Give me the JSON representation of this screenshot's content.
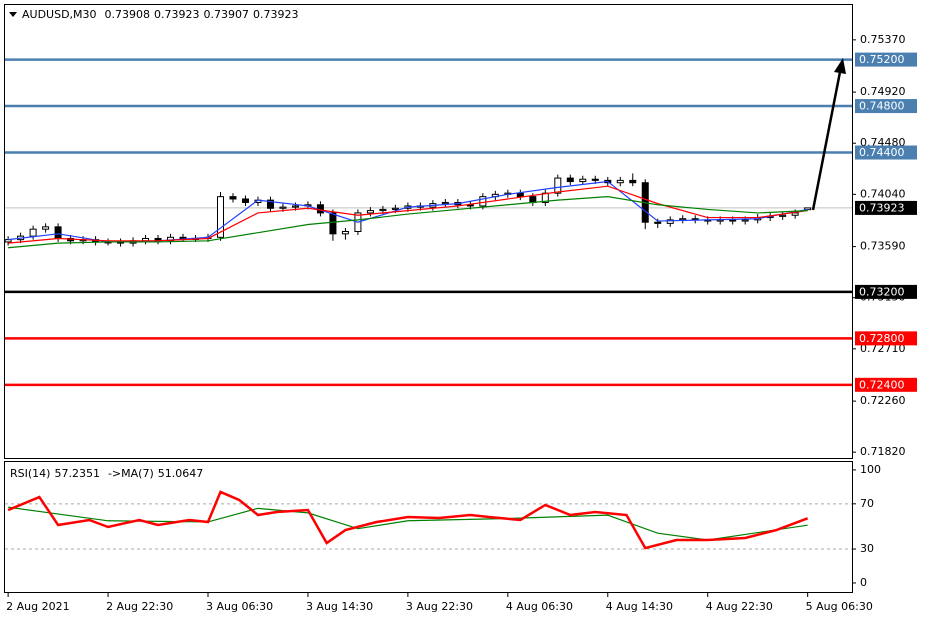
{
  "chart_data": [
    {
      "type": "candlestick",
      "title": "AUDUSD,M30",
      "x": [
        0,
        2,
        4,
        6,
        8,
        10,
        12,
        14,
        16,
        18,
        20,
        22,
        24,
        26,
        28,
        30,
        32,
        34,
        36,
        38,
        40,
        42,
        44,
        46,
        48,
        50,
        52,
        54,
        56,
        58,
        60,
        62,
        64,
        66,
        68,
        70,
        72,
        74,
        76,
        78,
        80,
        82,
        84,
        86,
        88,
        90,
        92,
        94,
        96,
        98,
        100,
        102,
        104,
        106,
        108,
        110,
        112,
        114,
        116,
        118,
        120,
        122,
        124,
        126,
        128
      ],
      "open": [
        0.7363,
        0.7365,
        0.7368,
        0.7374,
        0.7376,
        0.7366,
        0.7364,
        0.7365,
        0.7363,
        0.7363,
        0.7362,
        0.7364,
        0.7366,
        0.7364,
        0.7367,
        0.7366,
        0.7366,
        0.7367,
        0.7402,
        0.74,
        0.7397,
        0.7399,
        0.7392,
        0.7393,
        0.7394,
        0.7395,
        0.7388,
        0.737,
        0.7372,
        0.7388,
        0.739,
        0.7391,
        0.7392,
        0.7394,
        0.7393,
        0.7396,
        0.7397,
        0.7395,
        0.7394,
        0.7402,
        0.7404,
        0.7405,
        0.7402,
        0.7397,
        0.7405,
        0.7418,
        0.7415,
        0.7417,
        0.7416,
        0.7414,
        0.7416,
        0.7414,
        0.738,
        0.7379,
        0.7382,
        0.7383,
        0.7382,
        0.7381,
        0.7382,
        0.7381,
        0.7382,
        0.7384,
        0.7385,
        0.7386,
        0.73908
      ],
      "high": [
        0.7368,
        0.7371,
        0.7377,
        0.7379,
        0.7379,
        0.7369,
        0.7368,
        0.7368,
        0.7366,
        0.7366,
        0.7367,
        0.7369,
        0.7369,
        0.737,
        0.737,
        0.7369,
        0.737,
        0.7406,
        0.7405,
        0.7403,
        0.7402,
        0.7402,
        0.7396,
        0.7397,
        0.7398,
        0.7398,
        0.7391,
        0.7375,
        0.7391,
        0.7393,
        0.7394,
        0.7395,
        0.7397,
        0.7397,
        0.7399,
        0.74,
        0.74,
        0.7398,
        0.7405,
        0.7407,
        0.7408,
        0.7408,
        0.7405,
        0.7408,
        0.7421,
        0.7421,
        0.742,
        0.742,
        0.7419,
        0.7419,
        0.7422,
        0.7417,
        0.7383,
        0.7385,
        0.7386,
        0.7386,
        0.7385,
        0.7385,
        0.7385,
        0.7385,
        0.7387,
        0.7388,
        0.7389,
        0.7391,
        0.73923
      ],
      "low": [
        0.736,
        0.7362,
        0.7365,
        0.7371,
        0.7363,
        0.7361,
        0.7361,
        0.736,
        0.736,
        0.7359,
        0.7359,
        0.7361,
        0.7361,
        0.7361,
        0.7363,
        0.7363,
        0.7363,
        0.7364,
        0.7397,
        0.7394,
        0.7394,
        0.7389,
        0.7389,
        0.739,
        0.7391,
        0.7385,
        0.7364,
        0.7365,
        0.7369,
        0.7385,
        0.7387,
        0.7388,
        0.7389,
        0.739,
        0.739,
        0.7393,
        0.7392,
        0.7391,
        0.7391,
        0.7399,
        0.7401,
        0.7399,
        0.7394,
        0.7394,
        0.7402,
        0.7412,
        0.7412,
        0.7413,
        0.7411,
        0.7411,
        0.7411,
        0.7374,
        0.7375,
        0.7376,
        0.7379,
        0.7379,
        0.7378,
        0.7378,
        0.7378,
        0.7378,
        0.7379,
        0.7381,
        0.7382,
        0.7383,
        0.73907
      ],
      "close": [
        0.7365,
        0.7368,
        0.7374,
        0.7376,
        0.7366,
        0.7364,
        0.7365,
        0.7363,
        0.7363,
        0.7362,
        0.7364,
        0.7366,
        0.7364,
        0.7367,
        0.7366,
        0.7366,
        0.7367,
        0.7402,
        0.74,
        0.7397,
        0.7399,
        0.7392,
        0.7393,
        0.7394,
        0.7395,
        0.7388,
        0.737,
        0.7372,
        0.7388,
        0.739,
        0.7391,
        0.7392,
        0.7394,
        0.7393,
        0.7396,
        0.7397,
        0.7395,
        0.7394,
        0.7402,
        0.7404,
        0.7405,
        0.7402,
        0.7397,
        0.7405,
        0.7418,
        0.7415,
        0.7417,
        0.7416,
        0.7414,
        0.7416,
        0.7414,
        0.738,
        0.7379,
        0.7382,
        0.7383,
        0.7382,
        0.7381,
        0.7382,
        0.7381,
        0.7382,
        0.7384,
        0.7385,
        0.7386,
        0.7388,
        0.73923
      ],
      "lines": [
        {
          "color": "#2040ff",
          "x": [
            0,
            8,
            16,
            24,
            32,
            40,
            48,
            56,
            64,
            72,
            80,
            88,
            96,
            104,
            112,
            120,
            128
          ],
          "values": [
            0.7365,
            0.737,
            0.7363,
            0.7364,
            0.7367,
            0.7399,
            0.7394,
            0.738,
            0.7393,
            0.7396,
            0.7404,
            0.741,
            0.7415,
            0.7381,
            0.7382,
            0.7383,
            0.7391
          ]
        },
        {
          "color": "#ff0000",
          "x": [
            0,
            8,
            16,
            24,
            32,
            40,
            48,
            56,
            64,
            72,
            80,
            88,
            96,
            104,
            112,
            120,
            128
          ],
          "values": [
            0.7362,
            0.7366,
            0.7364,
            0.7364,
            0.7366,
            0.7388,
            0.7392,
            0.7386,
            0.739,
            0.7394,
            0.74,
            0.7406,
            0.7411,
            0.7396,
            0.7384,
            0.7384,
            0.739
          ]
        },
        {
          "color": "#008000",
          "x": [
            0,
            8,
            16,
            24,
            32,
            40,
            48,
            56,
            64,
            72,
            80,
            88,
            96,
            104,
            112,
            120,
            128
          ],
          "values": [
            0.7358,
            0.7362,
            0.7363,
            0.7363,
            0.7364,
            0.7371,
            0.7378,
            0.7382,
            0.7387,
            0.7391,
            0.7395,
            0.7399,
            0.7402,
            0.7395,
            0.7391,
            0.7388,
            0.739
          ]
        }
      ],
      "levels": [
        {
          "value": 0.752,
          "label": "0.75200",
          "color": "#4a7fb0"
        },
        {
          "value": 0.748,
          "label": "0.74800",
          "color": "#4a7fb0"
        },
        {
          "value": 0.744,
          "label": "0.74400",
          "color": "#4a7fb0"
        },
        {
          "value": 0.732,
          "label": "0.73200",
          "color": "#000000"
        },
        {
          "value": 0.728,
          "label": "0.72800",
          "color": "#ff0000"
        },
        {
          "value": 0.724,
          "label": "0.72400",
          "color": "#ff0000"
        }
      ],
      "xlim": [
        -0.5,
        135.1
      ],
      "ylim": [
        0.7177,
        0.7567
      ],
      "yticks": [
        {
          "value": 0.7537,
          "label": "0.75370"
        },
        {
          "value": 0.7492,
          "label": "0.74920"
        },
        {
          "value": 0.7448,
          "label": "0.74480"
        },
        {
          "value": 0.7404,
          "label": "0.74040"
        },
        {
          "value": 0.7359,
          "label": "0.73590"
        },
        {
          "value": 0.7315,
          "label": "0.73150"
        },
        {
          "value": 0.7271,
          "label": "0.72710"
        },
        {
          "value": 0.7226,
          "label": "0.72260"
        },
        {
          "value": 0.7182,
          "label": "0.71820"
        }
      ],
      "xticks": [
        {
          "value": 0,
          "label": "2 Aug 2021"
        },
        {
          "value": 16,
          "label": "2 Aug 22:30"
        },
        {
          "value": 32,
          "label": "3 Aug 06:30"
        },
        {
          "value": 48,
          "label": "3 Aug 14:30"
        },
        {
          "value": 64,
          "label": "3 Aug 22:30"
        },
        {
          "value": 80,
          "label": "4 Aug 06:30"
        },
        {
          "value": 96,
          "label": "4 Aug 14:30"
        },
        {
          "value": 112,
          "label": "4 Aug 22:30"
        },
        {
          "value": 128,
          "label": "5 Aug 06:30"
        }
      ]
    },
    {
      "type": "line",
      "title": "RSI(14)",
      "rsi_value": 57.2351,
      "ma_label": "->MA(7)",
      "ma_value": 51.0647,
      "series": [
        {
          "color": "#ff0000",
          "x": [
            0,
            5,
            8,
            13,
            16,
            21,
            24,
            29,
            32,
            34,
            37,
            40,
            43,
            48,
            51,
            54,
            59,
            64,
            69,
            74,
            77,
            82,
            86,
            90,
            94,
            99,
            102,
            107,
            112,
            118,
            123,
            128
          ],
          "values": [
            64.5,
            76,
            51.3,
            55.7,
            49.5,
            55.7,
            51.3,
            55.7,
            53.9,
            80.5,
            73.4,
            60.1,
            62.8,
            64.5,
            35.3,
            46.8,
            53.9,
            58.3,
            57.5,
            60.1,
            58.3,
            55.7,
            69,
            60.1,
            62.8,
            60.1,
            30.9,
            38,
            38,
            39.8,
            46.8,
            57.2
          ]
        },
        {
          "color": "#008000",
          "x": [
            0,
            16,
            32,
            40,
            48,
            56,
            64,
            80,
            96,
            104,
            112,
            128
          ],
          "values": [
            67,
            55,
            54,
            66,
            62,
            48,
            55,
            57,
            60,
            44,
            38,
            51.1
          ]
        }
      ],
      "levels": [
        30,
        70
      ],
      "xlim": [
        -0.5,
        135.1
      ],
      "ylim": [
        -8,
        107
      ],
      "yticks": [
        0,
        30,
        70,
        100
      ]
    }
  ]
}
